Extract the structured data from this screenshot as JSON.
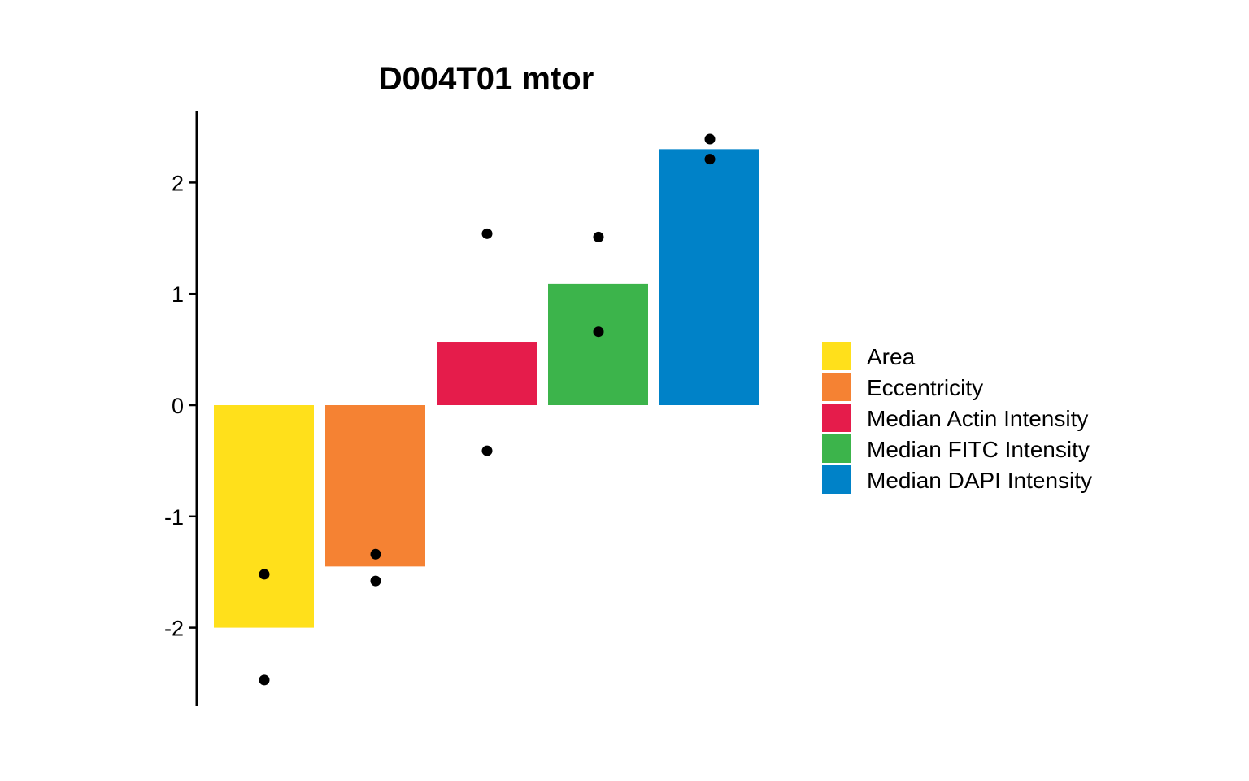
{
  "chart_data": {
    "type": "bar",
    "title": "D004T01 mtor",
    "xlabel": "",
    "ylabel": "",
    "ylim": [
      -2.7,
      2.6
    ],
    "yticks": [
      2,
      1,
      0,
      -1,
      -2
    ],
    "ytick_labels": [
      "2",
      "1",
      "0",
      "-1",
      "-2"
    ],
    "grid": false,
    "legend_position": "right",
    "categories": [
      "Area",
      "Eccentricity",
      "Median Actin Intensity",
      "Median FITC Intensity",
      "Median DAPI Intensity"
    ],
    "values": [
      -2.0,
      -1.45,
      0.57,
      1.09,
      2.3
    ],
    "colors": [
      "#FFE01B",
      "#F58233",
      "#E51C4B",
      "#3CB44B",
      "#0082C8"
    ],
    "points": [
      [
        -1.52,
        -2.47
      ],
      [
        -1.34,
        -1.58
      ],
      [
        1.54,
        -0.41
      ],
      [
        1.51,
        0.66
      ],
      [
        2.39,
        2.21
      ]
    ],
    "point_color": "#000000"
  }
}
